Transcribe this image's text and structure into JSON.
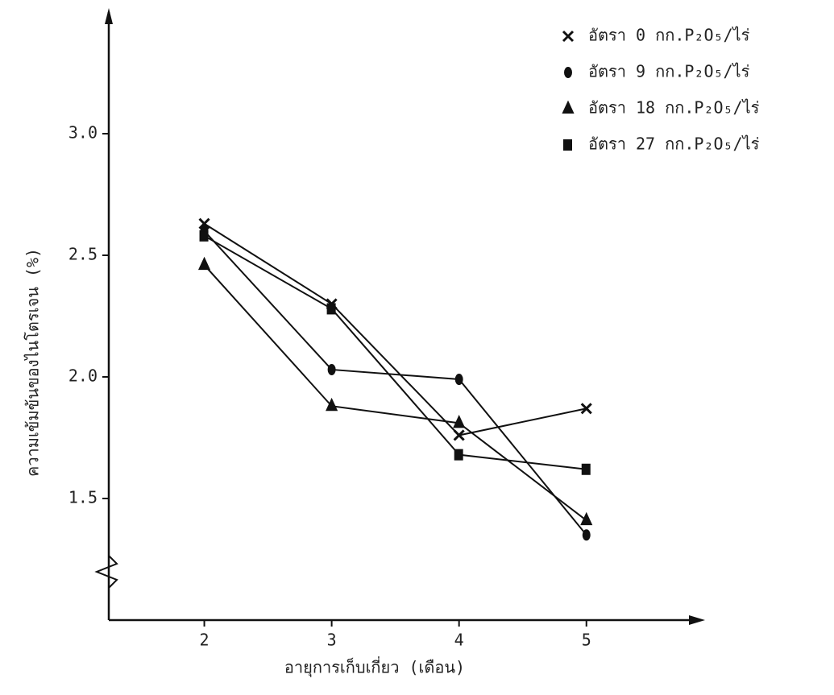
{
  "chart_data": {
    "type": "line",
    "x_label": "อายุการเก็บเกี่ยว (เดือน)",
    "y_label": "ความเข้มข้นของไนโตรเจน (%)",
    "x": [
      2,
      3,
      4,
      5
    ],
    "xlim": [
      1.25,
      5.9
    ],
    "xticks": [
      2,
      3,
      4,
      5
    ],
    "ylim": [
      1.0,
      3.5
    ],
    "yticks": [
      1.5,
      {
        "value": 2.0,
        "label": "2.0"
      },
      2.5,
      {
        "value": 3.0,
        "label": "3.0"
      }
    ],
    "legend": "top-right",
    "series": [
      {
        "name": "อัตรา 0 กก.P₂O₅/ไร่",
        "color": "#111111",
        "marker": "x",
        "values": [
          2.63,
          2.3,
          1.76,
          1.87
        ]
      },
      {
        "name": "อัตรา 9 กก.P₂O₅/ไร่",
        "color": "#111111",
        "marker": "circle",
        "values": [
          2.6,
          2.03,
          1.99,
          1.35
        ]
      },
      {
        "name": "อัตรา 18 กก.P₂O₅/ไร่",
        "color": "#111111",
        "marker": "triangle",
        "values": [
          2.46,
          1.88,
          1.81,
          1.41
        ]
      },
      {
        "name": "อัตรา 27 กก.P₂O₅/ไร่",
        "color": "#111111",
        "marker": "square",
        "values": [
          2.58,
          2.28,
          1.68,
          1.62
        ]
      }
    ]
  }
}
